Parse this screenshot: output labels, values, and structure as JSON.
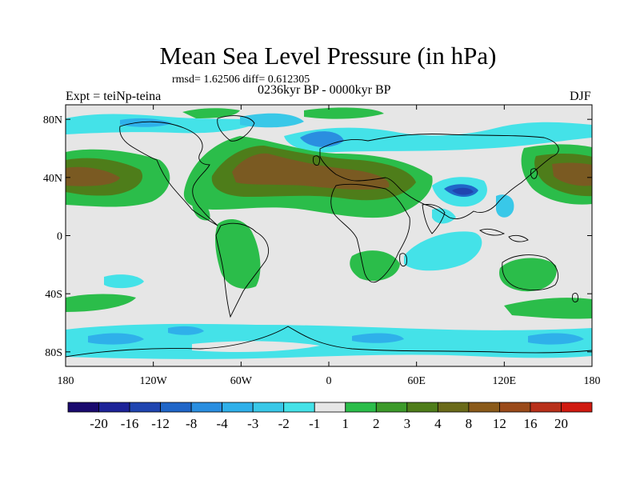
{
  "figure": {
    "title": "Mean Sea Level Pressure (in hPa)",
    "stats": "rmsd= 1.62506 diff= 0.612305",
    "period": "0236kyr BP - 0000kyr BP",
    "left_label": "Expt = teiNp-teina",
    "right_label": "DJF"
  },
  "map": {
    "projection": "cylindrical equidistant",
    "lon_range": [
      -180,
      180
    ],
    "lat_range": [
      -90,
      90
    ],
    "coastlines": true,
    "background_color": "#e6e6e6",
    "lon_ticks": [
      {
        "value": -180,
        "label": "180"
      },
      {
        "value": -120,
        "label": "120W"
      },
      {
        "value": -60,
        "label": "60W"
      },
      {
        "value": 0,
        "label": "0"
      },
      {
        "value": 60,
        "label": "60E"
      },
      {
        "value": 120,
        "label": "120E"
      },
      {
        "value": 180,
        "label": "180"
      }
    ],
    "lat_ticks": [
      {
        "value": 80,
        "label": "80N"
      },
      {
        "value": 40,
        "label": "40N"
      },
      {
        "value": 0,
        "label": "0"
      },
      {
        "value": -40,
        "label": "40S"
      },
      {
        "value": -80,
        "label": "80S"
      }
    ]
  },
  "colorbar": {
    "colors": [
      "#1a0a6e",
      "#1d2398",
      "#2045b0",
      "#2066c8",
      "#2a8ee0",
      "#2fb0ea",
      "#39c8e8",
      "#44e2e8",
      "#e6e6e6",
      "#2bbd4a",
      "#3c9a2a",
      "#4e7d1a",
      "#6a6a1a",
      "#8a5a1a",
      "#9a4a1a",
      "#b8301a",
      "#d01a10"
    ],
    "tick_labels": [
      "-20",
      "-16",
      "-12",
      "-8",
      "-4",
      "-3",
      "-2",
      "-1",
      "1",
      "2",
      "3",
      "4",
      "8",
      "12",
      "16",
      "20"
    ]
  }
}
